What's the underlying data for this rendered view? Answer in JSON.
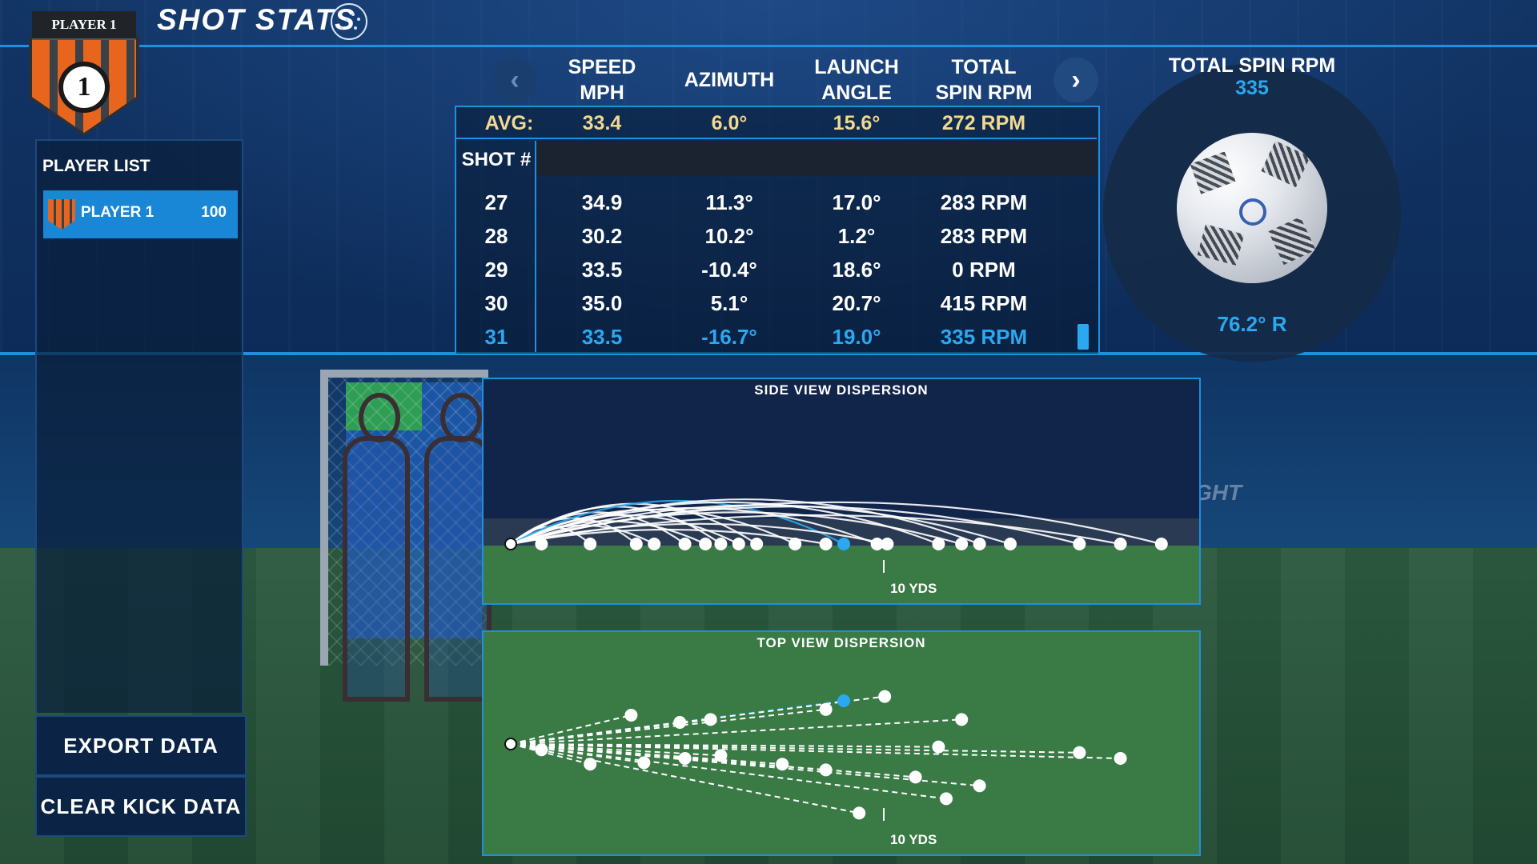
{
  "header": {
    "title": "SHOT STATS",
    "title_icon": "trajectory-icon"
  },
  "badge": {
    "label": "PLAYER 1",
    "number": "1"
  },
  "sidebar": {
    "list_label": "PLAYER LIST",
    "players": [
      {
        "name": "PLAYER 1",
        "score": "100"
      }
    ],
    "export_label": "EXPORT DATA",
    "clear_label": "CLEAR KICK DATA"
  },
  "nav": {
    "prev_icon": "chevron-left-icon",
    "next_icon": "chevron-right-icon"
  },
  "table": {
    "columns": [
      {
        "line1": "SPEED",
        "line2": "MPH"
      },
      {
        "line1": "AZIMUTH",
        "line2": ""
      },
      {
        "line1": "LAUNCH",
        "line2": "ANGLE"
      },
      {
        "line1": "TOTAL",
        "line2": "SPIN RPM"
      }
    ],
    "avg": {
      "label": "AVG:",
      "values": [
        "33.4",
        "6.0°",
        "15.6°",
        "272 RPM"
      ]
    },
    "shot_header": "SHOT #",
    "rows": [
      {
        "shot": "27",
        "values": [
          "34.9",
          "11.3°",
          "17.0°",
          "283 RPM"
        ]
      },
      {
        "shot": "28",
        "values": [
          "30.2",
          "10.2°",
          "1.2°",
          "283 RPM"
        ]
      },
      {
        "shot": "29",
        "values": [
          "33.5",
          "-10.4°",
          "18.6°",
          "0 RPM"
        ]
      },
      {
        "shot": "30",
        "values": [
          "35.0",
          "5.1°",
          "20.7°",
          "415 RPM"
        ]
      },
      {
        "shot": "31",
        "values": [
          "33.5",
          "-16.7°",
          "19.0°",
          "335 RPM"
        ],
        "selected": true
      }
    ]
  },
  "spin": {
    "title": "TOTAL SPIN RPM",
    "value": "335",
    "direction": "76.2° R"
  },
  "side_view": {
    "title": "SIDE VIEW DISPERSION",
    "distance_label": "10 YDS",
    "landing_yds": [
      1.2,
      3.1,
      4.9,
      5.6,
      6.8,
      7.6,
      8.2,
      8.9,
      9.6,
      11.1,
      12.3,
      13.0,
      14.3,
      14.7,
      16.7,
      17.6,
      18.3,
      19.5,
      22.2,
      23.8,
      25.4
    ],
    "selected_yds": 13.0,
    "arc_peaks": [
      0.5,
      1.2,
      1.8,
      1.3,
      2.2,
      1.6,
      2.6,
      2.0,
      2.8,
      2.4,
      1.0,
      3.0,
      2.5,
      1.4,
      2.9,
      2.2,
      3.1,
      2.7,
      2.6,
      2.0,
      2.9
    ]
  },
  "top_view": {
    "title": "TOP VIEW DISPERSION",
    "distance_label": "10 YDS",
    "points": [
      {
        "x": 13.0,
        "y": 3.0,
        "selected": true
      },
      {
        "x": 14.6,
        "y": 3.3
      },
      {
        "x": 12.3,
        "y": 2.4
      },
      {
        "x": 4.7,
        "y": 2.0
      },
      {
        "x": 6.6,
        "y": 1.5
      },
      {
        "x": 7.8,
        "y": 1.7
      },
      {
        "x": 17.6,
        "y": 1.7
      },
      {
        "x": 16.7,
        "y": -0.2
      },
      {
        "x": 22.2,
        "y": -0.6
      },
      {
        "x": 23.8,
        "y": -1.0
      },
      {
        "x": 1.2,
        "y": -0.4
      },
      {
        "x": 3.1,
        "y": -1.4
      },
      {
        "x": 5.2,
        "y": -1.3
      },
      {
        "x": 6.8,
        "y": -1.0
      },
      {
        "x": 8.2,
        "y": -0.8
      },
      {
        "x": 10.6,
        "y": -1.4
      },
      {
        "x": 12.3,
        "y": -1.8
      },
      {
        "x": 15.8,
        "y": -2.3
      },
      {
        "x": 18.3,
        "y": -2.9
      },
      {
        "x": 17.0,
        "y": -3.8
      },
      {
        "x": 13.6,
        "y": -4.8
      }
    ]
  },
  "background_text": "GHT"
}
